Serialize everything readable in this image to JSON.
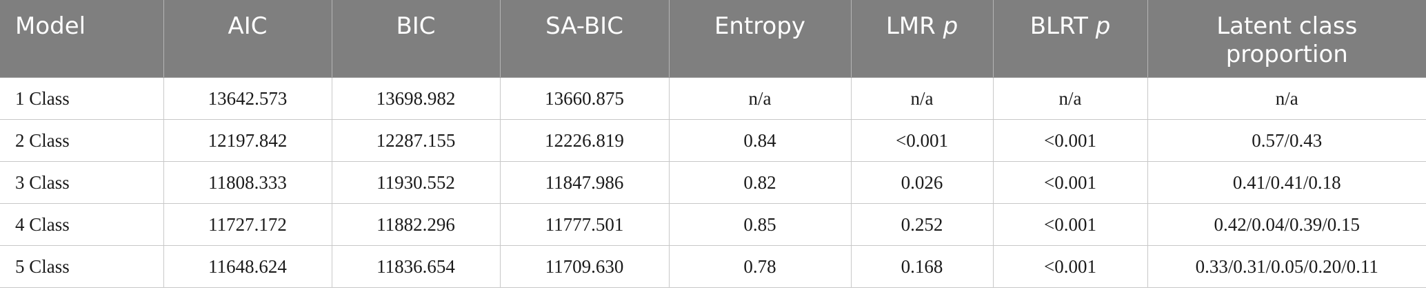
{
  "table": {
    "headers": {
      "model": "Model",
      "aic": "AIC",
      "bic": "BIC",
      "sabic": "SA-BIC",
      "entropy": "Entropy",
      "lmr_label": "LMR",
      "lmr_p": "p",
      "blrt_label": "BLRT",
      "blrt_p": "p",
      "latent_line1": "Latent class",
      "latent_line2": "proportion"
    },
    "rows": [
      {
        "model": "1 Class",
        "aic": "13642.573",
        "bic": "13698.982",
        "sabic": "13660.875",
        "entropy": "n/a",
        "lmr_p": "n/a",
        "blrt_p": "n/a",
        "proportion": "n/a"
      },
      {
        "model": "2 Class",
        "aic": "12197.842",
        "bic": "12287.155",
        "sabic": "12226.819",
        "entropy": "0.84",
        "lmr_p": "<0.001",
        "blrt_p": "<0.001",
        "proportion": "0.57/0.43"
      },
      {
        "model": "3 Class",
        "aic": "11808.333",
        "bic": "11930.552",
        "sabic": "11847.986",
        "entropy": "0.82",
        "lmr_p": "0.026",
        "blrt_p": "<0.001",
        "proportion": "0.41/0.41/0.18"
      },
      {
        "model": "4 Class",
        "aic": "11727.172",
        "bic": "11882.296",
        "sabic": "11777.501",
        "entropy": "0.85",
        "lmr_p": "0.252",
        "blrt_p": "<0.001",
        "proportion": "0.42/0.04/0.39/0.15"
      },
      {
        "model": "5 Class",
        "aic": "11648.624",
        "bic": "11836.654",
        "sabic": "11709.630",
        "entropy": "0.78",
        "lmr_p": "0.168",
        "blrt_p": "<0.001",
        "proportion": "0.33/0.31/0.05/0.20/0.11"
      }
    ]
  },
  "colors": {
    "header_bg": "#7f7f7f",
    "header_text": "#ffffff",
    "body_text": "#1a1a1a",
    "grid": "#c8c8c8"
  }
}
